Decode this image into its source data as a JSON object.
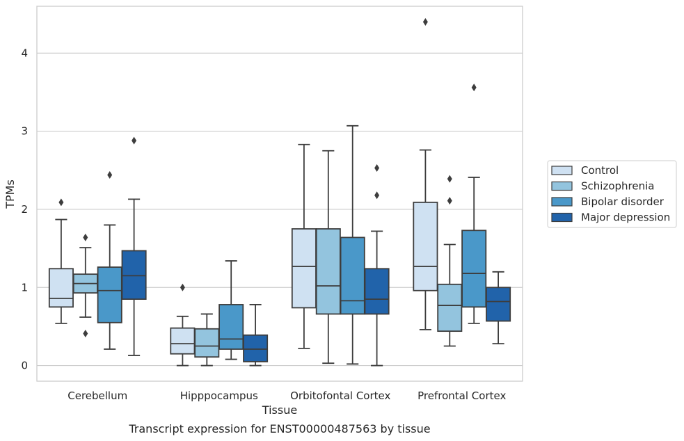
{
  "chart_data": {
    "type": "box",
    "caption": "Transcript expression for ENST00000487563 by tissue",
    "xlabel": "Tissue",
    "ylabel": "TPMs",
    "ylim": [
      -0.2,
      4.6
    ],
    "yticks": [
      0,
      1,
      2,
      3,
      4
    ],
    "grid": true,
    "legend_position": "right",
    "categories": [
      "Cerebellum",
      "Hipppocampus",
      "Orbitofontal Cortex",
      "Prefrontal Cortex"
    ],
    "series": [
      {
        "name": "Control",
        "color": "#cfe1f2",
        "boxes": [
          {
            "whisker_low": 0.54,
            "q1": 0.75,
            "median": 0.86,
            "q3": 1.24,
            "whisker_high": 1.87,
            "outliers": [
              2.09
            ]
          },
          {
            "whisker_low": 0.0,
            "q1": 0.15,
            "median": 0.28,
            "q3": 0.48,
            "whisker_high": 0.63,
            "outliers": [
              1.0
            ]
          },
          {
            "whisker_low": 0.22,
            "q1": 0.74,
            "median": 1.27,
            "q3": 1.75,
            "whisker_high": 2.83,
            "outliers": []
          },
          {
            "whisker_low": 0.46,
            "q1": 0.96,
            "median": 1.27,
            "q3": 2.09,
            "whisker_high": 2.76,
            "outliers": [
              4.4
            ]
          }
        ]
      },
      {
        "name": "Schizophrenia",
        "color": "#93c4de",
        "boxes": [
          {
            "whisker_low": 0.62,
            "q1": 0.93,
            "median": 1.05,
            "q3": 1.17,
            "whisker_high": 1.51,
            "outliers": [
              0.41,
              1.64
            ]
          },
          {
            "whisker_low": 0.0,
            "q1": 0.11,
            "median": 0.25,
            "q3": 0.47,
            "whisker_high": 0.66,
            "outliers": []
          },
          {
            "whisker_low": 0.03,
            "q1": 0.66,
            "median": 1.02,
            "q3": 1.75,
            "whisker_high": 2.75,
            "outliers": []
          },
          {
            "whisker_low": 0.25,
            "q1": 0.44,
            "median": 0.77,
            "q3": 1.04,
            "whisker_high": 1.55,
            "outliers": [
              2.11,
              2.39
            ]
          }
        ]
      },
      {
        "name": "Bipolar disorder",
        "color": "#4a98c9",
        "boxes": [
          {
            "whisker_low": 0.21,
            "q1": 0.55,
            "median": 0.96,
            "q3": 1.26,
            "whisker_high": 1.8,
            "outliers": [
              2.44
            ]
          },
          {
            "whisker_low": 0.08,
            "q1": 0.21,
            "median": 0.34,
            "q3": 0.78,
            "whisker_high": 1.34,
            "outliers": []
          },
          {
            "whisker_low": 0.02,
            "q1": 0.66,
            "median": 0.83,
            "q3": 1.64,
            "whisker_high": 3.07,
            "outliers": []
          },
          {
            "whisker_low": 0.54,
            "q1": 0.75,
            "median": 1.18,
            "q3": 1.73,
            "whisker_high": 2.41,
            "outliers": [
              3.56
            ]
          }
        ]
      },
      {
        "name": "Major depression",
        "color": "#2163aa",
        "boxes": [
          {
            "whisker_low": 0.13,
            "q1": 0.85,
            "median": 1.15,
            "q3": 1.47,
            "whisker_high": 2.13,
            "outliers": [
              2.88
            ]
          },
          {
            "whisker_low": 0.0,
            "q1": 0.05,
            "median": 0.21,
            "q3": 0.39,
            "whisker_high": 0.78,
            "outliers": []
          },
          {
            "whisker_low": 0.0,
            "q1": 0.66,
            "median": 0.85,
            "q3": 1.24,
            "whisker_high": 1.72,
            "outliers": [
              2.18,
              2.53
            ]
          },
          {
            "whisker_low": 0.28,
            "q1": 0.57,
            "median": 0.82,
            "q3": 1.0,
            "whisker_high": 1.2,
            "outliers": []
          }
        ]
      }
    ]
  }
}
